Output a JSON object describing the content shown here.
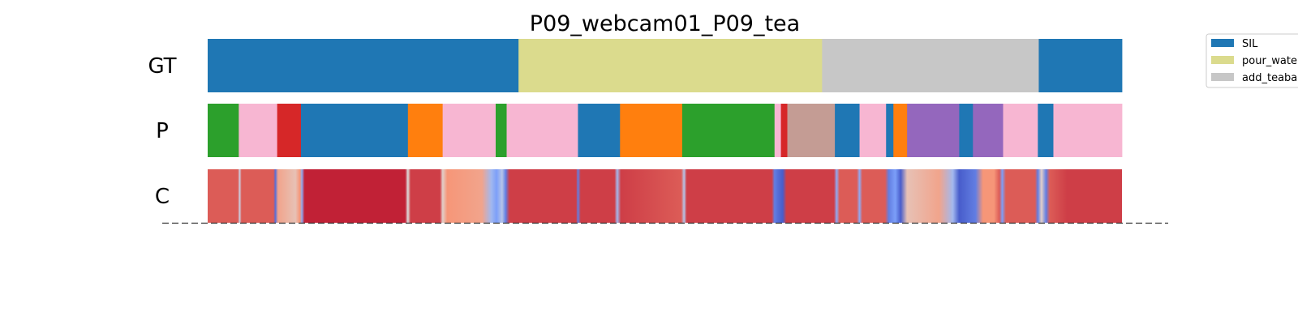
{
  "chart_data": {
    "type": "segmentation-strips",
    "title": "P09_webcam01_P09_tea",
    "x_range": [
      0,
      1000
    ],
    "rows": [
      {
        "label": "GT",
        "segments": [
          {
            "start": 0,
            "end": 340,
            "label": "SIL"
          },
          {
            "start": 340,
            "end": 672,
            "label": "pour_water"
          },
          {
            "start": 672,
            "end": 909,
            "label": "add_teabag"
          },
          {
            "start": 909,
            "end": 1000,
            "label": "SIL"
          }
        ]
      },
      {
        "label": "P",
        "segments": [
          {
            "start": 0,
            "end": 34,
            "color": "#2ca02c"
          },
          {
            "start": 34,
            "end": 76,
            "color": "#f7b6d2"
          },
          {
            "start": 76,
            "end": 102,
            "color": "#d62728"
          },
          {
            "start": 102,
            "end": 219,
            "color": "#1f77b4"
          },
          {
            "start": 219,
            "end": 257,
            "color": "#ff7f0e"
          },
          {
            "start": 257,
            "end": 315,
            "color": "#f7b6d2"
          },
          {
            "start": 315,
            "end": 327,
            "color": "#2ca02c"
          },
          {
            "start": 327,
            "end": 405,
            "color": "#f7b6d2"
          },
          {
            "start": 405,
            "end": 451,
            "color": "#1f77b4"
          },
          {
            "start": 451,
            "end": 519,
            "color": "#ff7f0e"
          },
          {
            "start": 519,
            "end": 620,
            "color": "#2ca02c"
          },
          {
            "start": 620,
            "end": 627,
            "color": "#f7b6d2"
          },
          {
            "start": 627,
            "end": 634,
            "color": "#d62728"
          },
          {
            "start": 634,
            "end": 686,
            "color": "#c49c94"
          },
          {
            "start": 686,
            "end": 713,
            "color": "#1f77b4"
          },
          {
            "start": 713,
            "end": 742,
            "color": "#f7b6d2"
          },
          {
            "start": 742,
            "end": 750,
            "color": "#1f77b4"
          },
          {
            "start": 750,
            "end": 765,
            "color": "#ff7f0e"
          },
          {
            "start": 765,
            "end": 822,
            "color": "#9467bd"
          },
          {
            "start": 822,
            "end": 837,
            "color": "#1f77b4"
          },
          {
            "start": 837,
            "end": 870,
            "color": "#9467bd"
          },
          {
            "start": 870,
            "end": 908,
            "color": "#f7b6d2"
          },
          {
            "start": 908,
            "end": 925,
            "color": "#1f77b4"
          },
          {
            "start": 925,
            "end": 1000,
            "color": "#f7b6d2"
          }
        ]
      },
      {
        "label": "C",
        "colormap": "coolwarm",
        "confidence_points": [
          [
            0,
            0.85
          ],
          [
            33,
            0.85
          ],
          [
            35,
            0.45
          ],
          [
            37,
            0.85
          ],
          [
            72,
            0.85
          ],
          [
            74,
            0.1
          ],
          [
            77,
            0.7
          ],
          [
            96,
            0.6
          ],
          [
            101,
            0.75
          ],
          [
            103,
            0.3
          ],
          [
            106,
            0.95
          ],
          [
            216,
            0.95
          ],
          [
            219,
            0.5
          ],
          [
            222,
            0.9
          ],
          [
            254,
            0.9
          ],
          [
            257,
            0.55
          ],
          [
            262,
            0.75
          ],
          [
            300,
            0.7
          ],
          [
            310,
            0.35
          ],
          [
            316,
            0.25
          ],
          [
            322,
            0.4
          ],
          [
            326,
            0.15
          ],
          [
            330,
            0.9
          ],
          [
            403,
            0.9
          ],
          [
            405,
            0.15
          ],
          [
            408,
            0.9
          ],
          [
            445,
            0.9
          ],
          [
            448,
            0.35
          ],
          [
            452,
            0.9
          ],
          [
            518,
            0.85
          ],
          [
            521,
            0.4
          ],
          [
            524,
            0.9
          ],
          [
            617,
            0.9
          ],
          [
            620,
            0.15
          ],
          [
            624,
            0.1
          ],
          [
            629,
            0.05
          ],
          [
            633,
            0.9
          ],
          [
            685,
            0.9
          ],
          [
            688,
            0.3
          ],
          [
            691,
            0.85
          ],
          [
            710,
            0.85
          ],
          [
            713,
            0.3
          ],
          [
            716,
            0.85
          ],
          [
            741,
            0.85
          ],
          [
            745,
            0.15
          ],
          [
            752,
            0.25
          ],
          [
            758,
            0.05
          ],
          [
            765,
            0.6
          ],
          [
            800,
            0.7
          ],
          [
            815,
            0.35
          ],
          [
            822,
            0.05
          ],
          [
            840,
            0.15
          ],
          [
            848,
            0.75
          ],
          [
            860,
            0.75
          ],
          [
            866,
            0.85
          ],
          [
            869,
            0.25
          ],
          [
            873,
            0.85
          ],
          [
            905,
            0.85
          ],
          [
            908,
            0.15
          ],
          [
            912,
            0.55
          ],
          [
            917,
            0.15
          ],
          [
            921,
            0.85
          ],
          [
            940,
            0.9
          ],
          [
            1000,
            0.9
          ]
        ]
      }
    ],
    "legend": {
      "position": "top-right",
      "entries": [
        {
          "label": "SIL",
          "color": "#1f77b4"
        },
        {
          "label": "pour_water",
          "color": "#dbdb8d"
        },
        {
          "label": "add_teabag",
          "color": "#c7c7c7"
        }
      ]
    }
  }
}
